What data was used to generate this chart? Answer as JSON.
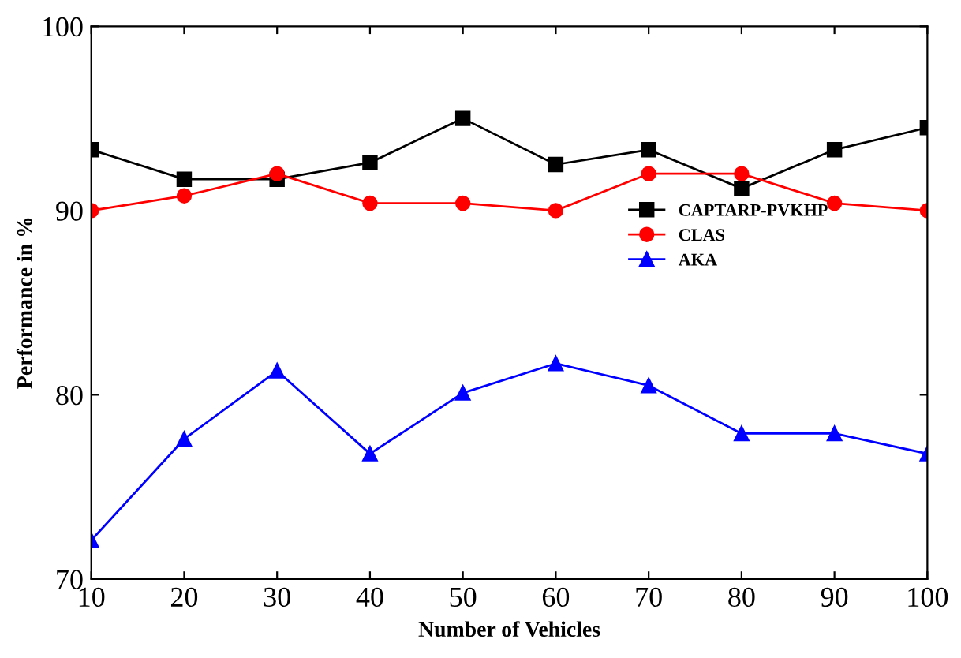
{
  "chart_data": {
    "type": "line",
    "xlabel": "Number of Vehicles",
    "ylabel": "Performance in %",
    "x": [
      10,
      20,
      30,
      40,
      50,
      60,
      70,
      80,
      90,
      100
    ],
    "series": [
      {
        "name": "CAPTARP-PVKHP",
        "color": "#000000",
        "marker": "square",
        "values": [
          93.3,
          91.7,
          91.7,
          92.6,
          95.0,
          92.5,
          93.3,
          91.2,
          93.3,
          94.5
        ]
      },
      {
        "name": "CLAS",
        "color": "#ff0000",
        "marker": "circle",
        "values": [
          90.0,
          90.8,
          92.0,
          90.4,
          90.4,
          90.0,
          92.0,
          92.0,
          90.4,
          90.0
        ]
      },
      {
        "name": "AKA",
        "color": "#0000ff",
        "marker": "triangle",
        "values": [
          72.1,
          77.6,
          81.3,
          76.8,
          80.1,
          81.7,
          80.5,
          77.9,
          77.9,
          76.8
        ]
      }
    ],
    "xlim": [
      10,
      100
    ],
    "ylim": [
      70,
      100
    ],
    "xticks": [
      10,
      20,
      30,
      40,
      50,
      60,
      70,
      80,
      90,
      100
    ],
    "yticks": [
      70,
      80,
      90,
      100
    ],
    "grid": false,
    "legend": "center right",
    "line_style": "solid"
  }
}
